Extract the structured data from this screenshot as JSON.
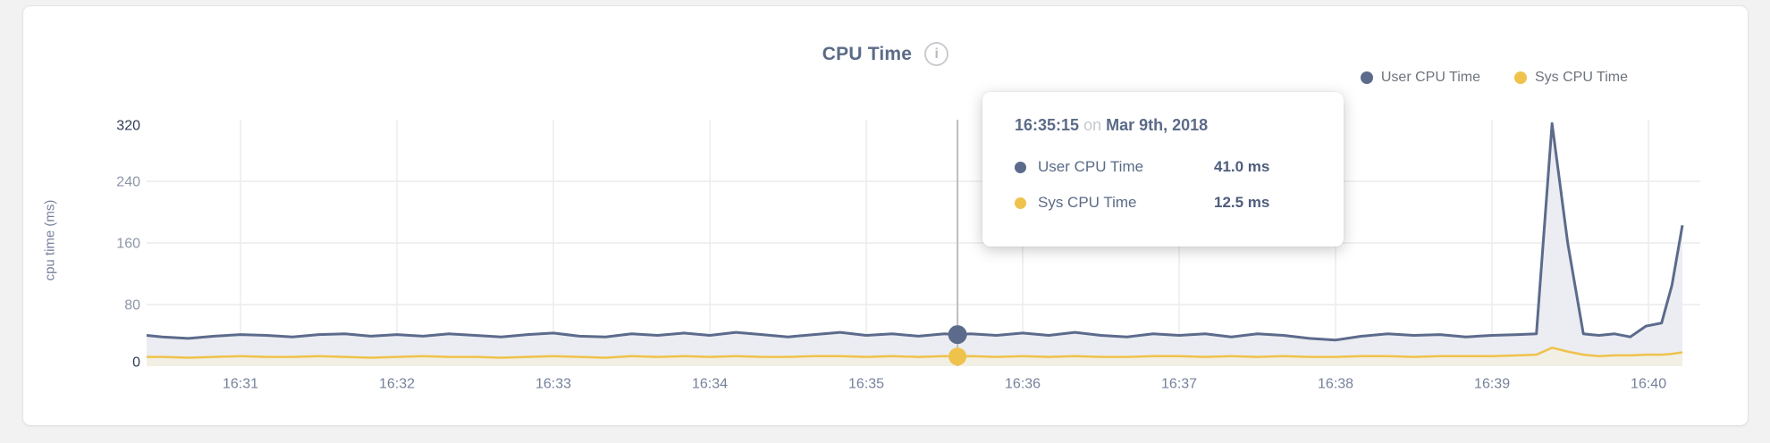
{
  "card": {
    "title": "CPU Time",
    "info_glyph": "i"
  },
  "legend": {
    "items": [
      {
        "label": "User CPU Time",
        "color": "#5c6b8c"
      },
      {
        "label": "Sys CPU Time",
        "color": "#efc24b"
      }
    ]
  },
  "tooltip": {
    "time": "16:35:15",
    "conjunction": "on",
    "date": "Mar 9th, 2018",
    "rows": [
      {
        "label": "User CPU Time",
        "value": "41.0 ms",
        "color": "#5c6b8c"
      },
      {
        "label": "Sys CPU Time",
        "value": "12.5 ms",
        "color": "#efc24b"
      }
    ]
  },
  "chart_data": {
    "type": "area",
    "title": "CPU Time",
    "ylabel": "cpu time (ms)",
    "xlabel": "",
    "grid": true,
    "legend_position": "top-right",
    "y_domain": [
      0,
      320
    ],
    "y_ticks": [
      0,
      80,
      160,
      240,
      320
    ],
    "x_domain_s": [
      -36,
      553
    ],
    "x_tick_seconds": [
      0,
      60,
      120,
      180,
      240,
      300,
      360,
      420,
      480,
      540
    ],
    "x_tick_labels": [
      "16:31",
      "16:32",
      "16:33",
      "16:34",
      "16:35",
      "16:36",
      "16:37",
      "16:38",
      "16:39",
      "16:40"
    ],
    "x_s": [
      -36,
      -30,
      -20,
      -10,
      0,
      10,
      20,
      30,
      40,
      50,
      60,
      70,
      80,
      90,
      100,
      110,
      120,
      130,
      140,
      150,
      160,
      170,
      180,
      190,
      200,
      210,
      220,
      230,
      240,
      250,
      260,
      270,
      275,
      280,
      290,
      300,
      310,
      320,
      330,
      340,
      350,
      360,
      370,
      380,
      390,
      400,
      410,
      420,
      430,
      440,
      450,
      460,
      470,
      480,
      490,
      497,
      503,
      509,
      515,
      521,
      527,
      533,
      539,
      545,
      549,
      553
    ],
    "series": [
      {
        "name": "User CPU Time",
        "unit": "ms",
        "color": "#5c6b8c",
        "fill": "#ecedf2",
        "values": [
          40,
          38,
          36,
          39,
          41,
          40,
          38,
          41,
          42,
          39,
          41,
          39,
          42,
          40,
          38,
          41,
          43,
          39,
          38,
          42,
          40,
          43,
          40,
          44,
          41,
          38,
          41,
          44,
          40,
          42,
          39,
          42,
          41,
          42,
          40,
          43,
          40,
          44,
          40,
          38,
          42,
          40,
          42,
          38,
          42,
          40,
          36,
          34,
          39,
          42,
          40,
          41,
          38,
          40,
          41,
          42,
          315,
          160,
          42,
          40,
          42,
          38,
          52,
          56,
          105,
          183
        ]
      },
      {
        "name": "Sys CPU Time",
        "unit": "ms",
        "color": "#efc24b",
        "fill": "#f2efe4",
        "values": [
          12,
          12,
          11,
          12,
          13,
          12,
          12,
          13,
          12,
          11,
          12,
          13,
          12,
          12,
          11,
          12,
          13,
          12,
          11,
          13,
          12,
          13,
          12,
          13,
          12,
          12,
          13,
          13,
          12,
          13,
          12,
          13,
          12.5,
          13,
          12,
          13,
          12,
          13,
          12,
          12,
          13,
          13,
          12,
          13,
          12,
          13,
          12,
          12,
          13,
          13,
          12,
          13,
          13,
          13,
          14,
          15,
          24,
          19,
          15,
          13,
          14,
          14,
          15,
          15,
          16,
          18
        ]
      }
    ],
    "hover": {
      "x_s": 275,
      "time_label": "16:35:15",
      "date_label": "Mar 9th, 2018",
      "user_ms": 41.0,
      "sys_ms": 12.5
    }
  }
}
